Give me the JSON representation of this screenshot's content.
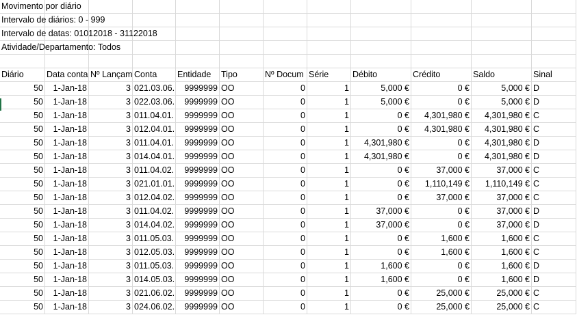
{
  "info_lines": [
    "Movimento por diário",
    "Intervalo de diários: 0 - 999",
    "Intervalo de datas: 01012018 - 31122018",
    "Atividade/Departamento: Todos"
  ],
  "headers": [
    "Diário",
    "Data conta",
    "Nº Lançam",
    "Conta",
    "Entidade",
    "Tipo",
    "Nº Docum",
    "Série",
    "Débito",
    "Crédito",
    "Saldo",
    "Sinal"
  ],
  "rows": [
    [
      "50",
      "1-Jan-18",
      "3",
      "021.03.06.",
      "9999999",
      "OO",
      "0",
      "1",
      "5,000 €",
      "0 €",
      "5,000 €",
      "D"
    ],
    [
      "50",
      "1-Jan-18",
      "3",
      "022.03.06.",
      "9999999",
      "OO",
      "0",
      "1",
      "5,000 €",
      "0 €",
      "5,000 €",
      "D"
    ],
    [
      "50",
      "1-Jan-18",
      "3",
      "011.04.01.",
      "9999999",
      "OO",
      "0",
      "1",
      "0 €",
      "4,301,980 €",
      "4,301,980 €",
      "C"
    ],
    [
      "50",
      "1-Jan-18",
      "3",
      "012.04.01.",
      "9999999",
      "OO",
      "0",
      "1",
      "0 €",
      "4,301,980 €",
      "4,301,980 €",
      "C"
    ],
    [
      "50",
      "1-Jan-18",
      "3",
      "011.04.01.",
      "9999999",
      "OO",
      "0",
      "1",
      "4,301,980 €",
      "0 €",
      "4,301,980 €",
      "D"
    ],
    [
      "50",
      "1-Jan-18",
      "3",
      "014.04.01.",
      "9999999",
      "OO",
      "0",
      "1",
      "4,301,980 €",
      "0 €",
      "4,301,980 €",
      "D"
    ],
    [
      "50",
      "1-Jan-18",
      "3",
      "011.04.02.",
      "9999999",
      "OO",
      "0",
      "1",
      "0 €",
      "37,000 €",
      "37,000 €",
      "C"
    ],
    [
      "50",
      "1-Jan-18",
      "3",
      "021.01.01.",
      "9999999",
      "OO",
      "0",
      "1",
      "0 €",
      "1,110,149 €",
      "1,110,149 €",
      "C"
    ],
    [
      "50",
      "1-Jan-18",
      "3",
      "012.04.02.",
      "9999999",
      "OO",
      "0",
      "1",
      "0 €",
      "37,000 €",
      "37,000 €",
      "C"
    ],
    [
      "50",
      "1-Jan-18",
      "3",
      "011.04.02.",
      "9999999",
      "OO",
      "0",
      "1",
      "37,000 €",
      "0 €",
      "37,000 €",
      "D"
    ],
    [
      "50",
      "1-Jan-18",
      "3",
      "014.04.02.",
      "9999999",
      "OO",
      "0",
      "1",
      "37,000 €",
      "0 €",
      "37,000 €",
      "D"
    ],
    [
      "50",
      "1-Jan-18",
      "3",
      "011.05.03.",
      "9999999",
      "OO",
      "0",
      "1",
      "0 €",
      "1,600 €",
      "1,600 €",
      "C"
    ],
    [
      "50",
      "1-Jan-18",
      "3",
      "012.05.03.",
      "9999999",
      "OO",
      "0",
      "1",
      "0 €",
      "1,600 €",
      "1,600 €",
      "C"
    ],
    [
      "50",
      "1-Jan-18",
      "3",
      "011.05.03.",
      "9999999",
      "OO",
      "0",
      "1",
      "1,600 €",
      "0 €",
      "1,600 €",
      "D"
    ],
    [
      "50",
      "1-Jan-18",
      "3",
      "014.05.03.",
      "9999999",
      "OO",
      "0",
      "1",
      "1,600 €",
      "0 €",
      "1,600 €",
      "D"
    ],
    [
      "50",
      "1-Jan-18",
      "3",
      "021.06.02.",
      "9999999",
      "OO",
      "0",
      "1",
      "0 €",
      "25,000 €",
      "25,000 €",
      "C"
    ],
    [
      "50",
      "1-Jan-18",
      "3",
      "024.06.02.",
      "9999999",
      "OO",
      "0",
      "1",
      "0 €",
      "25,000 €",
      "25,000 €",
      "C"
    ]
  ]
}
